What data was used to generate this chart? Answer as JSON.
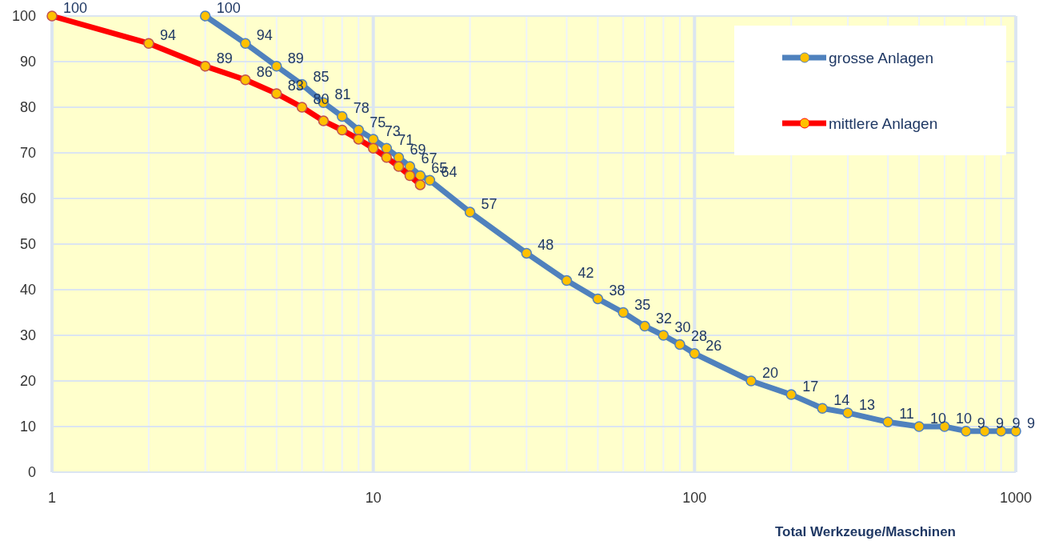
{
  "chart_data": {
    "type": "line",
    "xlabel": "Total Werkzeuge/Maschinen",
    "log": "x",
    "xlim": [
      1,
      1000
    ],
    "xticks": [
      1,
      10,
      100,
      1000
    ],
    "ylim": [
      0,
      100
    ],
    "yticks": [
      0,
      10,
      20,
      30,
      40,
      50,
      60,
      70,
      80,
      90,
      100
    ],
    "grid": true,
    "legend": "top right",
    "marker": "circle",
    "line_style": "solid",
    "series": [
      {
        "name": "grosse Anlagen",
        "color": "#4f81bd",
        "x": [
          3,
          4,
          5,
          6,
          7,
          8,
          9,
          10,
          11,
          12,
          13,
          14,
          15,
          20,
          30,
          40,
          50,
          60,
          70,
          80,
          90,
          100,
          150,
          200,
          250,
          300,
          400,
          500,
          600,
          700,
          800,
          900,
          1000
        ],
        "values": [
          100,
          94,
          89,
          85,
          81,
          78,
          75,
          73,
          71,
          69,
          67,
          65,
          64,
          57,
          48,
          42,
          38,
          35,
          32,
          30,
          28,
          26,
          20,
          17,
          14,
          13,
          11,
          10,
          10,
          9,
          9,
          9,
          9
        ],
        "value_labels": [
          "100",
          "94",
          "89",
          "85",
          "81",
          "78",
          "75",
          "73",
          "71",
          "69",
          "67",
          "65",
          "64",
          "57",
          "48",
          "42",
          "38",
          "35",
          "32",
          "30",
          "28",
          "26",
          "20",
          "17",
          "14",
          "13",
          "11",
          "10",
          "10",
          "9",
          "9",
          "9",
          "9"
        ]
      },
      {
        "name": "mittlere Anlagen",
        "color": "#ff0000",
        "x": [
          1,
          2,
          3,
          4,
          5,
          6,
          7,
          8,
          9,
          10,
          11,
          12,
          13,
          14
        ],
        "values": [
          100,
          94,
          89,
          86,
          83,
          80,
          77,
          75,
          73,
          71,
          69,
          67,
          65,
          63
        ],
        "value_labels": [
          "100",
          "94",
          "89",
          "86",
          "83",
          "80",
          null,
          null,
          null,
          null,
          null,
          null,
          null,
          null
        ]
      }
    ]
  }
}
